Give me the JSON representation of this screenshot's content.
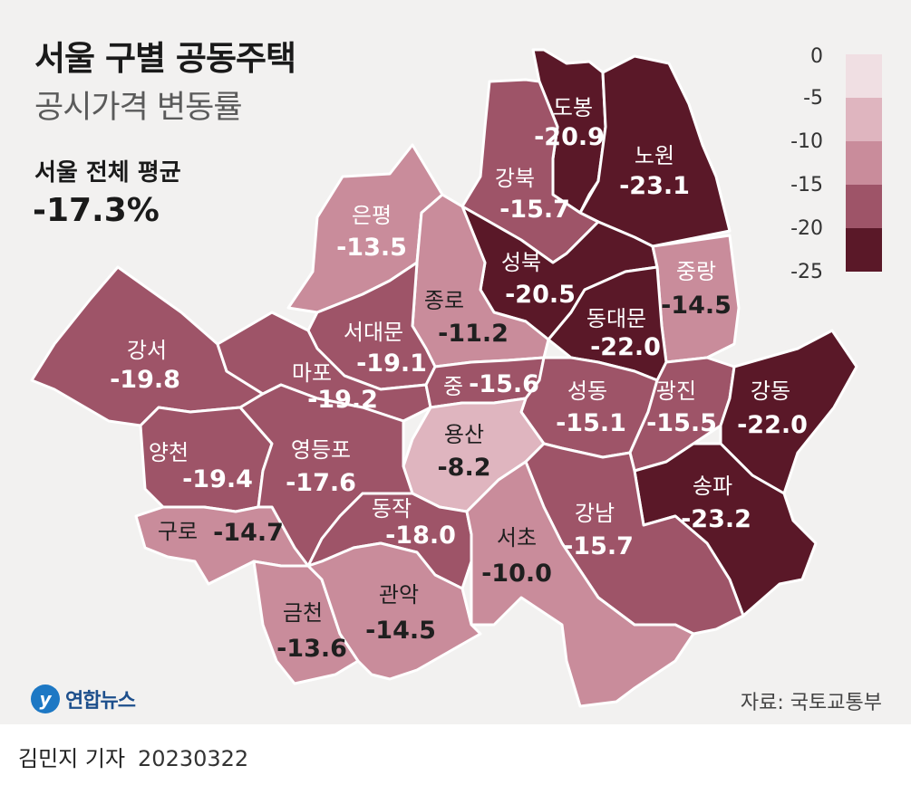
{
  "title": "서울 구별 공동주택",
  "subtitle": "공시가격 변동률",
  "average": {
    "label": "서울 전체 평균",
    "value": "-17.3%"
  },
  "legend": {
    "ticks": [
      "0",
      "-5",
      "-10",
      "-15",
      "-20",
      "-25"
    ],
    "colors": [
      "#f0dfe3",
      "#dfb5bf",
      "#c98c9b",
      "#9e5468",
      "#5a1828"
    ]
  },
  "districts": [
    {
      "name": "도봉",
      "value": "-20.9",
      "color": "#5a1828"
    },
    {
      "name": "노원",
      "value": "-23.1",
      "color": "#5a1828"
    },
    {
      "name": "강북",
      "value": "-15.7",
      "color": "#9e5468"
    },
    {
      "name": "은평",
      "value": "-13.5",
      "color": "#c98c9b"
    },
    {
      "name": "성북",
      "value": "-20.5",
      "color": "#5a1828"
    },
    {
      "name": "중랑",
      "value": "-14.5",
      "color": "#c98c9b"
    },
    {
      "name": "종로",
      "value": "-11.2",
      "color": "#c98c9b"
    },
    {
      "name": "동대문",
      "value": "-22.0",
      "color": "#5a1828"
    },
    {
      "name": "서대문",
      "value": "-19.1",
      "color": "#9e5468"
    },
    {
      "name": "강서",
      "value": "-19.8",
      "color": "#9e5468"
    },
    {
      "name": "마포",
      "value": "-19.2",
      "color": "#9e5468"
    },
    {
      "name": "중",
      "value": "-15.6",
      "color": "#9e5468"
    },
    {
      "name": "성동",
      "value": "-15.1",
      "color": "#9e5468"
    },
    {
      "name": "광진",
      "value": "-15.5",
      "color": "#9e5468"
    },
    {
      "name": "강동",
      "value": "-22.0",
      "color": "#5a1828"
    },
    {
      "name": "용산",
      "value": "-8.2",
      "color": "#dfb5bf"
    },
    {
      "name": "양천",
      "value": "-19.4",
      "color": "#9e5468"
    },
    {
      "name": "영등포",
      "value": "-17.6",
      "color": "#9e5468"
    },
    {
      "name": "구로",
      "value": "-14.7",
      "color": "#c98c9b"
    },
    {
      "name": "동작",
      "value": "-18.0",
      "color": "#9e5468"
    },
    {
      "name": "송파",
      "value": "-23.2",
      "color": "#5a1828"
    },
    {
      "name": "강남",
      "value": "-15.7",
      "color": "#9e5468"
    },
    {
      "name": "서초",
      "value": "-10.0",
      "color": "#c98c9b"
    },
    {
      "name": "금천",
      "value": "-13.6",
      "color": "#c98c9b"
    },
    {
      "name": "관악",
      "value": "-14.5",
      "color": "#c98c9b"
    }
  ],
  "logo": {
    "mark": "y",
    "text": "연합뉴스"
  },
  "source": "자료: 국토교통부",
  "byline": {
    "author": "김민지 기자",
    "date": "20230322"
  }
}
